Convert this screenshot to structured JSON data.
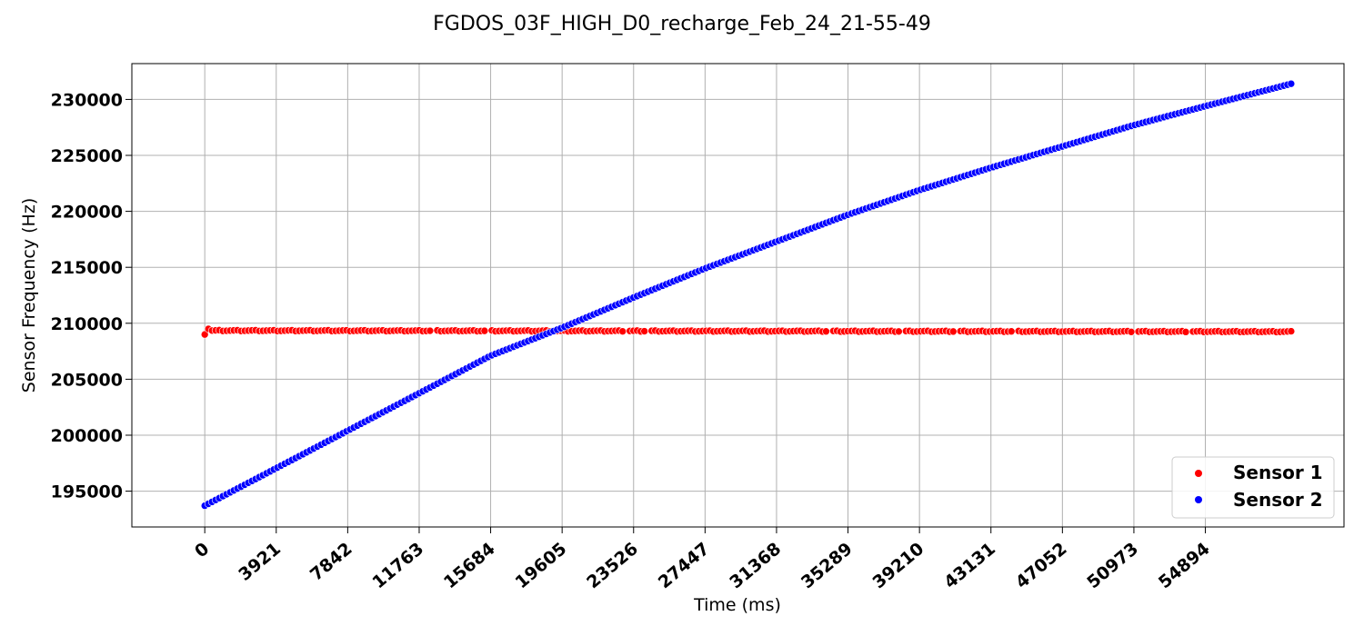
{
  "chart_data": {
    "type": "scatter",
    "title": "FGDOS_03F_HIGH_D0_recharge_Feb_24_21-55-49",
    "xlabel": "Time (ms)",
    "ylabel": "Sensor Frequency (Hz)",
    "xlim": [
      -4000,
      62500
    ],
    "ylim": [
      191800,
      233200
    ],
    "x_ticks": [
      0,
      3921,
      7842,
      11763,
      15684,
      19605,
      23526,
      27447,
      31368,
      35289,
      39210,
      43131,
      47052,
      50973,
      54894
    ],
    "y_ticks": [
      195000,
      200000,
      205000,
      210000,
      215000,
      220000,
      225000,
      230000
    ],
    "grid": true,
    "legend_position": "bottom-right",
    "x_range": [
      0,
      59600
    ],
    "point_count": 300,
    "series": [
      {
        "name": "Sensor 1",
        "color": "#ff0000",
        "values_description": "flat",
        "start": 209000,
        "second": 209500,
        "level": 209350,
        "end_level": 209250,
        "gaps_at": [
          1250,
          1550,
          2320,
          2440,
          3420,
          3830,
          4120,
          4450,
          5100,
          5400
        ]
      },
      {
        "name": "Sensor 2",
        "color": "#0000ff",
        "anchors": [
          [
            0,
            193700
          ],
          [
            7842,
            200400
          ],
          [
            15684,
            207100
          ],
          [
            19605,
            209600
          ],
          [
            23526,
            212300
          ],
          [
            27447,
            214900
          ],
          [
            31368,
            217300
          ],
          [
            35289,
            219700
          ],
          [
            39210,
            221900
          ],
          [
            43131,
            223900
          ],
          [
            47052,
            225800
          ],
          [
            50973,
            227700
          ],
          [
            54894,
            229400
          ],
          [
            59600,
            231400
          ]
        ]
      }
    ]
  }
}
